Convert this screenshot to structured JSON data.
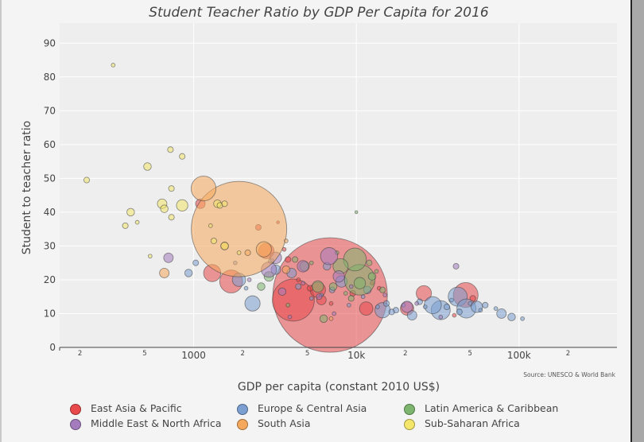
{
  "chart_data": {
    "type": "scatter",
    "title": "Student Teacher Ratio by GDP Per Capita for 2016",
    "xlabel": "GDP per capita (constant 2010 US$)",
    "ylabel": "Student to teacher ratio",
    "source": "Source: UNESCO & World Bank",
    "x_scale": "log",
    "xlim": [
      150,
      400000
    ],
    "ylim": [
      0,
      95
    ],
    "y_ticks": [
      "0",
      "10",
      "20",
      "30",
      "40",
      "50",
      "60",
      "70",
      "80",
      "90"
    ],
    "x_major_ticks": [
      {
        "value": 1000,
        "label": "1000"
      },
      {
        "value": 10000,
        "label": "10k"
      },
      {
        "value": 100000,
        "label": "100k"
      }
    ],
    "x_minor_ticks": [
      {
        "value": 200,
        "label": "2"
      },
      {
        "value": 500,
        "label": "5"
      },
      {
        "value": 2000,
        "label": "2"
      },
      {
        "value": 5000,
        "label": "5"
      },
      {
        "value": 20000,
        "label": "2"
      },
      {
        "value": 50000,
        "label": "5"
      },
      {
        "value": 200000,
        "label": "2"
      }
    ],
    "grid": true,
    "legend_position": "bottom",
    "series": [
      {
        "name": "East Asia & Pacific",
        "color": "#e8494a",
        "points": [
          {
            "x": 6900,
            "y": 15.5,
            "size": 60
          },
          {
            "x": 4100,
            "y": 14,
            "size": 22
          },
          {
            "x": 1700,
            "y": 19.5,
            "size": 12
          },
          {
            "x": 1300,
            "y": 22,
            "size": 9
          },
          {
            "x": 5800,
            "y": 17,
            "size": 8
          },
          {
            "x": 11500,
            "y": 11.5,
            "size": 7
          },
          {
            "x": 6100,
            "y": 14,
            "size": 5
          },
          {
            "x": 26000,
            "y": 16,
            "size": 8
          },
          {
            "x": 47000,
            "y": 15.5,
            "size": 13
          },
          {
            "x": 20500,
            "y": 11.5,
            "size": 7
          },
          {
            "x": 2800,
            "y": 28.5,
            "size": 8
          },
          {
            "x": 3600,
            "y": 29,
            "size": 2
          },
          {
            "x": 1100,
            "y": 42.5,
            "size": 5
          },
          {
            "x": 2500,
            "y": 35.5,
            "size": 3
          },
          {
            "x": 9500,
            "y": 16,
            "size": 3
          },
          {
            "x": 52000,
            "y": 14.5,
            "size": 3
          },
          {
            "x": 40000,
            "y": 9.5,
            "size": 2
          },
          {
            "x": 7000,
            "y": 13,
            "size": 2
          },
          {
            "x": 5200,
            "y": 17.5,
            "size": 3
          },
          {
            "x": 3800,
            "y": 26,
            "size": 3
          },
          {
            "x": 4400,
            "y": 20,
            "size": 2
          },
          {
            "x": 12500,
            "y": 19,
            "size": 2
          },
          {
            "x": 3300,
            "y": 37,
            "size": 1.5
          },
          {
            "x": 13800,
            "y": 17.5,
            "size": 2
          }
        ]
      },
      {
        "name": "Europe & Central Asia",
        "color": "#7a9fd0",
        "points": [
          {
            "x": 4000,
            "y": 22,
            "size": 5
          },
          {
            "x": 2300,
            "y": 13,
            "size": 8
          },
          {
            "x": 1900,
            "y": 20,
            "size": 7
          },
          {
            "x": 1030,
            "y": 25,
            "size": 3
          },
          {
            "x": 930,
            "y": 22,
            "size": 4
          },
          {
            "x": 3200,
            "y": 23,
            "size": 5
          },
          {
            "x": 6600,
            "y": 24,
            "size": 4
          },
          {
            "x": 8100,
            "y": 19.5,
            "size": 6
          },
          {
            "x": 11700,
            "y": 17,
            "size": 4
          },
          {
            "x": 14500,
            "y": 11,
            "size": 8
          },
          {
            "x": 29500,
            "y": 12.5,
            "size": 9
          },
          {
            "x": 33000,
            "y": 11,
            "size": 10
          },
          {
            "x": 42000,
            "y": 15,
            "size": 10
          },
          {
            "x": 47500,
            "y": 11.5,
            "size": 10
          },
          {
            "x": 55000,
            "y": 12,
            "size": 6
          },
          {
            "x": 78000,
            "y": 10,
            "size": 5
          },
          {
            "x": 90000,
            "y": 9,
            "size": 4
          },
          {
            "x": 105000,
            "y": 8.5,
            "size": 2
          },
          {
            "x": 17500,
            "y": 11,
            "size": 3
          },
          {
            "x": 22000,
            "y": 9.5,
            "size": 5
          },
          {
            "x": 15300,
            "y": 13,
            "size": 3
          },
          {
            "x": 24500,
            "y": 13.5,
            "size": 3
          },
          {
            "x": 36000,
            "y": 12,
            "size": 3
          },
          {
            "x": 62000,
            "y": 12.5,
            "size": 3
          },
          {
            "x": 7100,
            "y": 17,
            "size": 3
          },
          {
            "x": 4400,
            "y": 18,
            "size": 3
          },
          {
            "x": 3000,
            "y": 25.5,
            "size": 3
          },
          {
            "x": 1800,
            "y": 25,
            "size": 2
          },
          {
            "x": 2100,
            "y": 17.5,
            "size": 2
          },
          {
            "x": 13500,
            "y": 12,
            "size": 2
          },
          {
            "x": 16500,
            "y": 10.5,
            "size": 3
          },
          {
            "x": 19500,
            "y": 12.5,
            "size": 2
          },
          {
            "x": 26500,
            "y": 12,
            "size": 2
          },
          {
            "x": 38500,
            "y": 14,
            "size": 2
          },
          {
            "x": 43000,
            "y": 10.5,
            "size": 3
          },
          {
            "x": 50000,
            "y": 13,
            "size": 2
          },
          {
            "x": 58000,
            "y": 11,
            "size": 2
          },
          {
            "x": 72000,
            "y": 11.5,
            "size": 2
          },
          {
            "x": 9000,
            "y": 12.5,
            "size": 2
          },
          {
            "x": 11000,
            "y": 15,
            "size": 2
          },
          {
            "x": 5300,
            "y": 14.5,
            "size": 2
          },
          {
            "x": 6100,
            "y": 15.5,
            "size": 2
          }
        ]
      },
      {
        "name": "Latin America & Caribbean",
        "color": "#7db56e",
        "points": [
          {
            "x": 10500,
            "y": 20,
            "size": 16
          },
          {
            "x": 9800,
            "y": 26,
            "size": 12
          },
          {
            "x": 8000,
            "y": 24,
            "size": 8
          },
          {
            "x": 5800,
            "y": 18,
            "size": 6
          },
          {
            "x": 10500,
            "y": 19,
            "size": 6
          },
          {
            "x": 4800,
            "y": 24,
            "size": 5
          },
          {
            "x": 12500,
            "y": 21,
            "size": 4
          },
          {
            "x": 6300,
            "y": 8.5,
            "size": 4
          },
          {
            "x": 2900,
            "y": 21,
            "size": 5
          },
          {
            "x": 2600,
            "y": 18,
            "size": 4
          },
          {
            "x": 7200,
            "y": 18,
            "size": 4
          },
          {
            "x": 9300,
            "y": 14.5,
            "size": 3
          },
          {
            "x": 14500,
            "y": 17,
            "size": 3
          },
          {
            "x": 12000,
            "y": 25,
            "size": 3
          },
          {
            "x": 4200,
            "y": 26,
            "size": 3
          },
          {
            "x": 3800,
            "y": 12.5,
            "size": 2
          },
          {
            "x": 7600,
            "y": 28,
            "size": 2
          },
          {
            "x": 5300,
            "y": 25,
            "size": 2
          },
          {
            "x": 10000,
            "y": 40,
            "size": 1.5
          },
          {
            "x": 8600,
            "y": 16,
            "size": 2
          },
          {
            "x": 13300,
            "y": 22.5,
            "size": 2
          }
        ]
      },
      {
        "name": "Middle East & North Africa",
        "color": "#a47bbd",
        "points": [
          {
            "x": 6800,
            "y": 27,
            "size": 9
          },
          {
            "x": 7800,
            "y": 21,
            "size": 6
          },
          {
            "x": 3200,
            "y": 26.5,
            "size": 6
          },
          {
            "x": 2900,
            "y": 23,
            "size": 8
          },
          {
            "x": 4700,
            "y": 24,
            "size": 6
          },
          {
            "x": 700,
            "y": 26.5,
            "size": 5
          },
          {
            "x": 3500,
            "y": 16.5,
            "size": 4
          },
          {
            "x": 41000,
            "y": 24,
            "size": 3
          },
          {
            "x": 20500,
            "y": 12,
            "size": 6
          },
          {
            "x": 5900,
            "y": 15,
            "size": 3
          },
          {
            "x": 33000,
            "y": 9,
            "size": 2
          },
          {
            "x": 7300,
            "y": 10,
            "size": 2
          },
          {
            "x": 4700,
            "y": 19,
            "size": 2
          },
          {
            "x": 9300,
            "y": 18,
            "size": 2
          },
          {
            "x": 23500,
            "y": 13,
            "size": 2
          },
          {
            "x": 2200,
            "y": 20,
            "size": 2
          },
          {
            "x": 3900,
            "y": 9,
            "size": 2
          },
          {
            "x": 15000,
            "y": 15.5,
            "size": 2
          }
        ]
      },
      {
        "name": "South Asia",
        "color": "#f5a85b",
        "points": [
          {
            "x": 1900,
            "y": 35,
            "size": 50
          },
          {
            "x": 1150,
            "y": 47,
            "size": 13
          },
          {
            "x": 2700,
            "y": 29,
            "size": 8
          },
          {
            "x": 660,
            "y": 22,
            "size": 5
          },
          {
            "x": 3700,
            "y": 23,
            "size": 4
          },
          {
            "x": 2150,
            "y": 28,
            "size": 3
          },
          {
            "x": 1550,
            "y": 30,
            "size": 4
          },
          {
            "x": 7000,
            "y": 8.5,
            "size": 2
          },
          {
            "x": 3700,
            "y": 31.5,
            "size": 2
          }
        ]
      },
      {
        "name": "Sub-Saharan Africa",
        "color": "#f3e66a",
        "points": [
          {
            "x": 320,
            "y": 83.5,
            "size": 2
          },
          {
            "x": 220,
            "y": 49.5,
            "size": 3
          },
          {
            "x": 520,
            "y": 53.5,
            "size": 4
          },
          {
            "x": 720,
            "y": 58.5,
            "size": 3
          },
          {
            "x": 850,
            "y": 56.5,
            "size": 3
          },
          {
            "x": 640,
            "y": 42.5,
            "size": 5
          },
          {
            "x": 850,
            "y": 42,
            "size": 6
          },
          {
            "x": 660,
            "y": 41,
            "size": 4
          },
          {
            "x": 410,
            "y": 40,
            "size": 4
          },
          {
            "x": 730,
            "y": 47,
            "size": 3
          },
          {
            "x": 730,
            "y": 38.5,
            "size": 3
          },
          {
            "x": 1400,
            "y": 42.5,
            "size": 4
          },
          {
            "x": 1450,
            "y": 42,
            "size": 3
          },
          {
            "x": 1550,
            "y": 42.5,
            "size": 3
          },
          {
            "x": 1330,
            "y": 31.5,
            "size": 3
          },
          {
            "x": 1550,
            "y": 30,
            "size": 4
          },
          {
            "x": 1270,
            "y": 36,
            "size": 2
          },
          {
            "x": 380,
            "y": 36,
            "size": 3
          },
          {
            "x": 450,
            "y": 37,
            "size": 2
          },
          {
            "x": 540,
            "y": 27,
            "size": 2
          },
          {
            "x": 1900,
            "y": 28,
            "size": 2
          }
        ]
      }
    ]
  }
}
